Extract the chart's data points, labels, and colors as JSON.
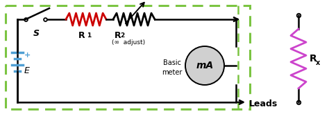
{
  "bg_color": "#ffffff",
  "dashed_rect_color": "#7bc442",
  "circuit_color": "#000000",
  "battery_color": "#4f9fd4",
  "r1_color": "#cc0000",
  "rx_color": "#cc44cc",
  "switch_label": "S",
  "r1_label": "R",
  "r1_sub": "1",
  "r2_label": "R",
  "r2_sub": "2",
  "r2_sub2": "(∞  adjust)",
  "battery_label": "E",
  "battery_plus": "+",
  "meter_label": "mA",
  "basic_meter": "Basic\nmeter",
  "leads_label": "Leads",
  "rx_label": "R",
  "rx_sub": "x",
  "fig_width": 4.74,
  "fig_height": 1.68,
  "dpi": 100
}
